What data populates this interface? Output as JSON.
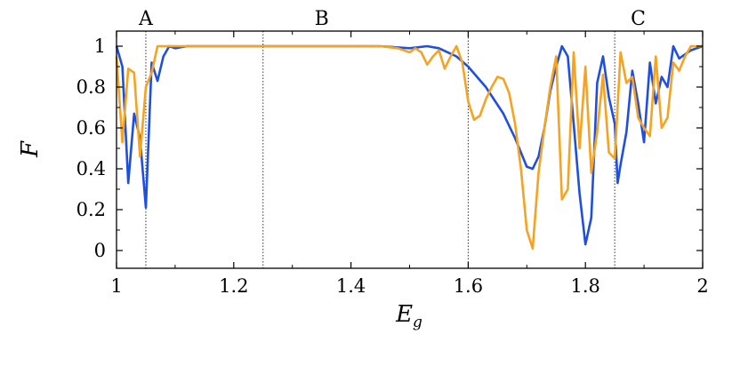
{
  "chart_data": {
    "type": "line",
    "xlabel": "E",
    "xlabel_sub": "g",
    "ylabel": "F",
    "xlim": [
      1,
      2
    ],
    "ylim": [
      0,
      1
    ],
    "grid": false,
    "x_ticks": [
      1,
      1.2,
      1.4,
      1.6,
      1.8,
      2
    ],
    "x_tick_labels": [
      "1",
      "1.2",
      "1.4",
      "1.6",
      "1.8",
      "2"
    ],
    "y_ticks": [
      0,
      0.2,
      0.4,
      0.6,
      0.8,
      1
    ],
    "y_tick_labels": [
      "0",
      "0.2",
      "0.4",
      "0.6",
      "0.8",
      "1"
    ],
    "regions": [
      {
        "label": "A",
        "label_x": 1.05,
        "boundary": 1.05
      },
      {
        "label": "B",
        "label_x": 1.35,
        "boundary": 1.25
      },
      {
        "label": "C",
        "label_x": 1.89,
        "boundary": 1.6
      }
    ],
    "extra_boundaries": [
      1.85
    ],
    "series": [
      {
        "color": "#1f4fe0",
        "points": [
          [
            1.0,
            1.0
          ],
          [
            1.01,
            0.9
          ],
          [
            1.02,
            0.33
          ],
          [
            1.03,
            0.67
          ],
          [
            1.04,
            0.55
          ],
          [
            1.05,
            0.21
          ],
          [
            1.06,
            0.92
          ],
          [
            1.07,
            0.83
          ],
          [
            1.08,
            0.95
          ],
          [
            1.09,
            1.0
          ],
          [
            1.1,
            0.99
          ],
          [
            1.12,
            1.0
          ],
          [
            1.2,
            1.0
          ],
          [
            1.3,
            1.0
          ],
          [
            1.4,
            1.0
          ],
          [
            1.45,
            1.0
          ],
          [
            1.5,
            0.99
          ],
          [
            1.53,
            1.0
          ],
          [
            1.55,
            0.99
          ],
          [
            1.58,
            0.95
          ],
          [
            1.6,
            0.9
          ],
          [
            1.63,
            0.8
          ],
          [
            1.66,
            0.67
          ],
          [
            1.68,
            0.55
          ],
          [
            1.7,
            0.41
          ],
          [
            1.71,
            0.4
          ],
          [
            1.72,
            0.46
          ],
          [
            1.73,
            0.6
          ],
          [
            1.74,
            0.78
          ],
          [
            1.75,
            0.9
          ],
          [
            1.76,
            1.0
          ],
          [
            1.77,
            0.95
          ],
          [
            1.78,
            0.62
          ],
          [
            1.79,
            0.28
          ],
          [
            1.8,
            0.03
          ],
          [
            1.81,
            0.16
          ],
          [
            1.82,
            0.82
          ],
          [
            1.83,
            0.95
          ],
          [
            1.84,
            0.75
          ],
          [
            1.85,
            0.62
          ],
          [
            1.855,
            0.33
          ],
          [
            1.86,
            0.42
          ],
          [
            1.87,
            0.58
          ],
          [
            1.88,
            0.88
          ],
          [
            1.89,
            0.72
          ],
          [
            1.9,
            0.53
          ],
          [
            1.91,
            0.92
          ],
          [
            1.92,
            0.72
          ],
          [
            1.93,
            0.85
          ],
          [
            1.94,
            0.8
          ],
          [
            1.95,
            1.0
          ],
          [
            1.96,
            0.94
          ],
          [
            1.97,
            0.96
          ],
          [
            1.98,
            0.98
          ],
          [
            1.99,
            0.99
          ],
          [
            2.0,
            1.0
          ]
        ]
      },
      {
        "color": "#f5a320",
        "points": [
          [
            1.0,
            0.95
          ],
          [
            1.01,
            0.53
          ],
          [
            1.02,
            0.89
          ],
          [
            1.03,
            0.87
          ],
          [
            1.04,
            0.46
          ],
          [
            1.05,
            0.8
          ],
          [
            1.06,
            0.87
          ],
          [
            1.07,
            1.0
          ],
          [
            1.1,
            1.0
          ],
          [
            1.2,
            1.0
          ],
          [
            1.3,
            1.0
          ],
          [
            1.4,
            1.0
          ],
          [
            1.45,
            1.0
          ],
          [
            1.48,
            0.99
          ],
          [
            1.5,
            0.97
          ],
          [
            1.51,
            0.99
          ],
          [
            1.52,
            0.97
          ],
          [
            1.53,
            0.91
          ],
          [
            1.54,
            0.95
          ],
          [
            1.55,
            0.98
          ],
          [
            1.56,
            0.89
          ],
          [
            1.57,
            0.95
          ],
          [
            1.58,
            1.0
          ],
          [
            1.59,
            0.92
          ],
          [
            1.6,
            0.73
          ],
          [
            1.61,
            0.64
          ],
          [
            1.62,
            0.66
          ],
          [
            1.63,
            0.74
          ],
          [
            1.64,
            0.8
          ],
          [
            1.65,
            0.85
          ],
          [
            1.66,
            0.84
          ],
          [
            1.67,
            0.77
          ],
          [
            1.68,
            0.62
          ],
          [
            1.69,
            0.4
          ],
          [
            1.7,
            0.1
          ],
          [
            1.71,
            0.01
          ],
          [
            1.72,
            0.38
          ],
          [
            1.73,
            0.6
          ],
          [
            1.74,
            0.8
          ],
          [
            1.75,
            0.95
          ],
          [
            1.76,
            0.25
          ],
          [
            1.77,
            0.3
          ],
          [
            1.78,
            0.97
          ],
          [
            1.79,
            0.5
          ],
          [
            1.8,
            0.9
          ],
          [
            1.81,
            0.38
          ],
          [
            1.82,
            0.58
          ],
          [
            1.83,
            0.86
          ],
          [
            1.84,
            0.48
          ],
          [
            1.85,
            0.45
          ],
          [
            1.86,
            0.97
          ],
          [
            1.87,
            0.82
          ],
          [
            1.88,
            0.85
          ],
          [
            1.89,
            0.65
          ],
          [
            1.9,
            0.6
          ],
          [
            1.91,
            0.56
          ],
          [
            1.92,
            0.95
          ],
          [
            1.93,
            0.6
          ],
          [
            1.94,
            0.65
          ],
          [
            1.95,
            0.92
          ],
          [
            1.96,
            0.88
          ],
          [
            1.97,
            0.95
          ],
          [
            1.98,
            1.0
          ],
          [
            2.0,
            1.0
          ]
        ]
      }
    ]
  }
}
